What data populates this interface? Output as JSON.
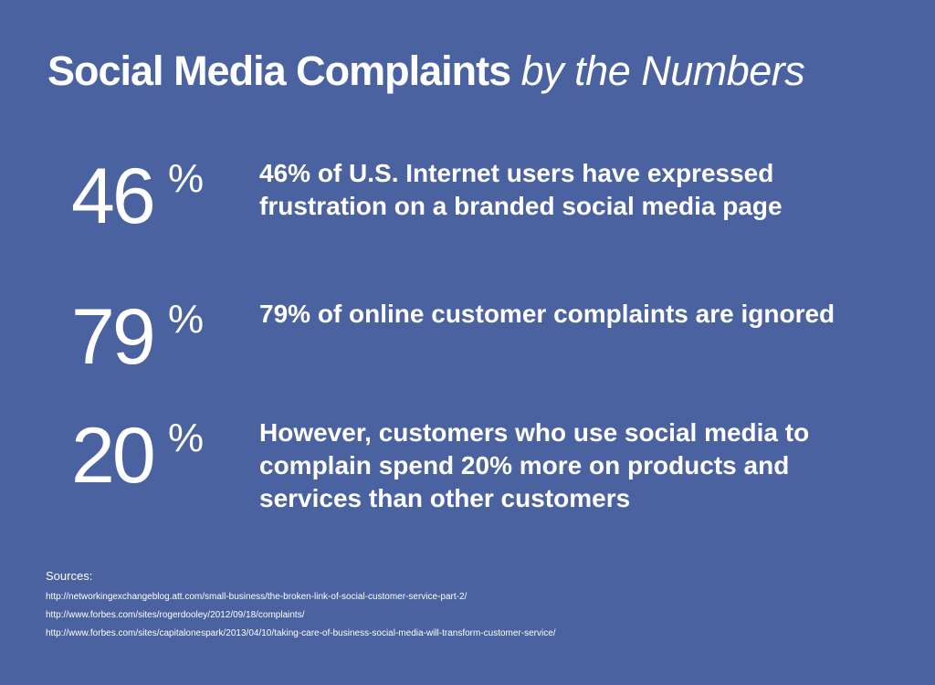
{
  "title": {
    "main": "Social Media Complaints",
    "italic": "by the Numbers"
  },
  "stats": [
    {
      "number": "46",
      "percent": "%",
      "text": "46% of U.S. Internet users have expressed frustration on a branded social media page"
    },
    {
      "number": "79",
      "percent": "%",
      "text": "79% of online customer complaints are ignored"
    },
    {
      "number": "20",
      "percent": "%",
      "text": "However, customers who use social media to complain spend 20% more on products and services than other customers"
    }
  ],
  "sources": {
    "label": "Sources:",
    "links": [
      "http://networkingexchangeblog.att.com/small-business/the-broken-link-of-social-customer-service-part-2/",
      "http://www.forbes.com/sites/rogerdooley/2012/09/18/complaints/",
      "http://www.forbes.com/sites/capitalonespark/2013/04/10/taking-care-of-business-social-media-will-transform-customer-service/"
    ]
  },
  "colors": {
    "background": "#4b62a0",
    "text": "#ffffff"
  }
}
